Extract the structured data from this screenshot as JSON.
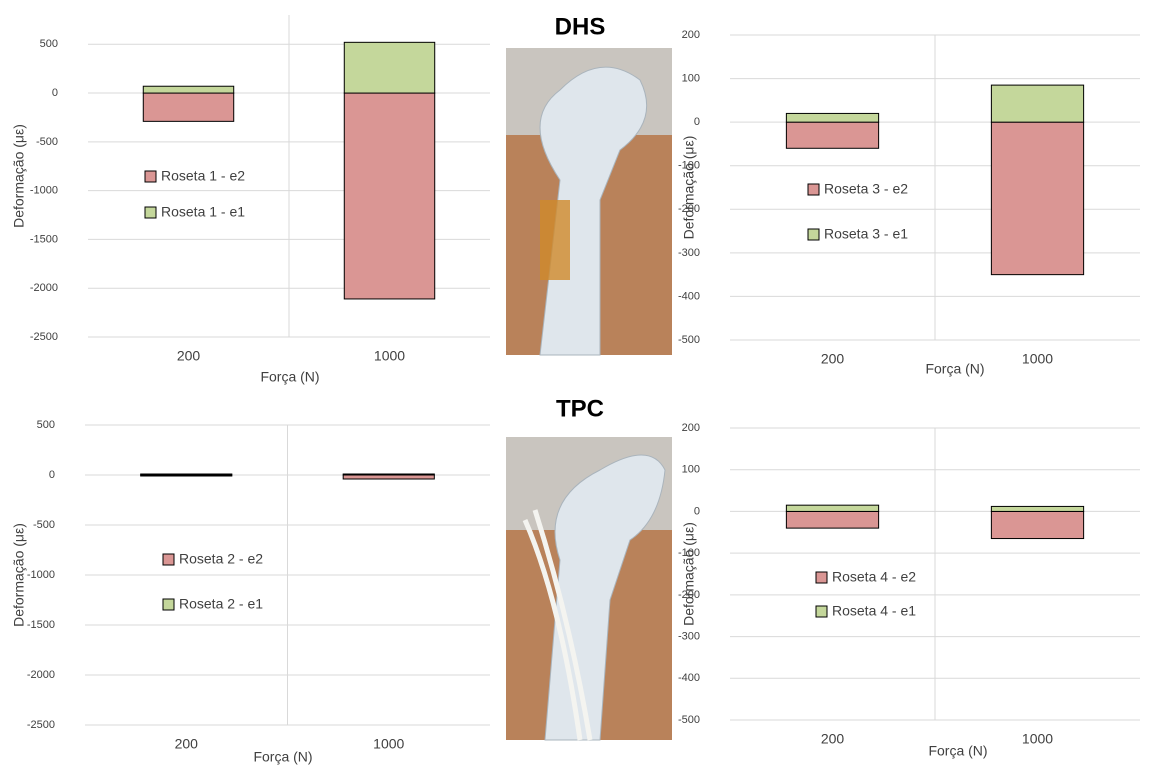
{
  "panel_labels": [
    "DHS",
    "TPC"
  ],
  "chart_data": [
    {
      "type": "bar",
      "stacked": true,
      "x_label": "Força (N)",
      "y_label": "Deformação (με)",
      "categories": [
        "200",
        "1000"
      ],
      "ylim": [
        -2500,
        800
      ],
      "yticks": [
        -2500,
        -2000,
        -1500,
        -1000,
        -500,
        0,
        500
      ],
      "grid": true,
      "series": [
        {
          "name": "Roseta 1 - e2",
          "color": "#da9694",
          "values": [
            -290,
            -2110
          ]
        },
        {
          "name": "Roseta 1 - e1",
          "color": "#c4d79b",
          "values": [
            70,
            520
          ]
        }
      ]
    },
    {
      "type": "bar",
      "stacked": true,
      "x_label": "Força (N)",
      "y_label": "Deformação (με)",
      "categories": [
        "200",
        "1000"
      ],
      "ylim": [
        -500,
        200
      ],
      "yticks": [
        -500,
        -400,
        -300,
        -200,
        -100,
        0,
        100,
        200
      ],
      "grid": true,
      "series": [
        {
          "name": "Roseta 3 - e2",
          "color": "#da9694",
          "values": [
            -60,
            -350
          ]
        },
        {
          "name": "Roseta 3 - e1",
          "color": "#c4d79b",
          "values": [
            20,
            85
          ]
        }
      ]
    },
    {
      "type": "bar",
      "stacked": true,
      "x_label": "Força (N)",
      "y_label": "Deformação (με)",
      "categories": [
        "200",
        "1000"
      ],
      "ylim": [
        -2500,
        500
      ],
      "yticks": [
        -2500,
        -2000,
        -1500,
        -1000,
        -500,
        0,
        500
      ],
      "grid": true,
      "series": [
        {
          "name": "Roseta 2 - e2",
          "color": "#da9694",
          "values": [
            -10,
            -40
          ]
        },
        {
          "name": "Roseta 2 - e1",
          "color": "#c4d79b",
          "values": [
            10,
            10
          ]
        }
      ]
    },
    {
      "type": "bar",
      "stacked": true,
      "x_label": "Força (N)",
      "y_label": "Deformação (με)",
      "categories": [
        "200",
        "1000"
      ],
      "ylim": [
        -500,
        200
      ],
      "yticks": [
        -500,
        -400,
        -300,
        -200,
        -100,
        0,
        100,
        200
      ],
      "grid": true,
      "series": [
        {
          "name": "Roseta 4 - e2",
          "color": "#da9694",
          "values": [
            -40,
            -65
          ]
        },
        {
          "name": "Roseta 4 - e1",
          "color": "#c4d79b",
          "values": [
            15,
            12
          ]
        }
      ]
    }
  ]
}
